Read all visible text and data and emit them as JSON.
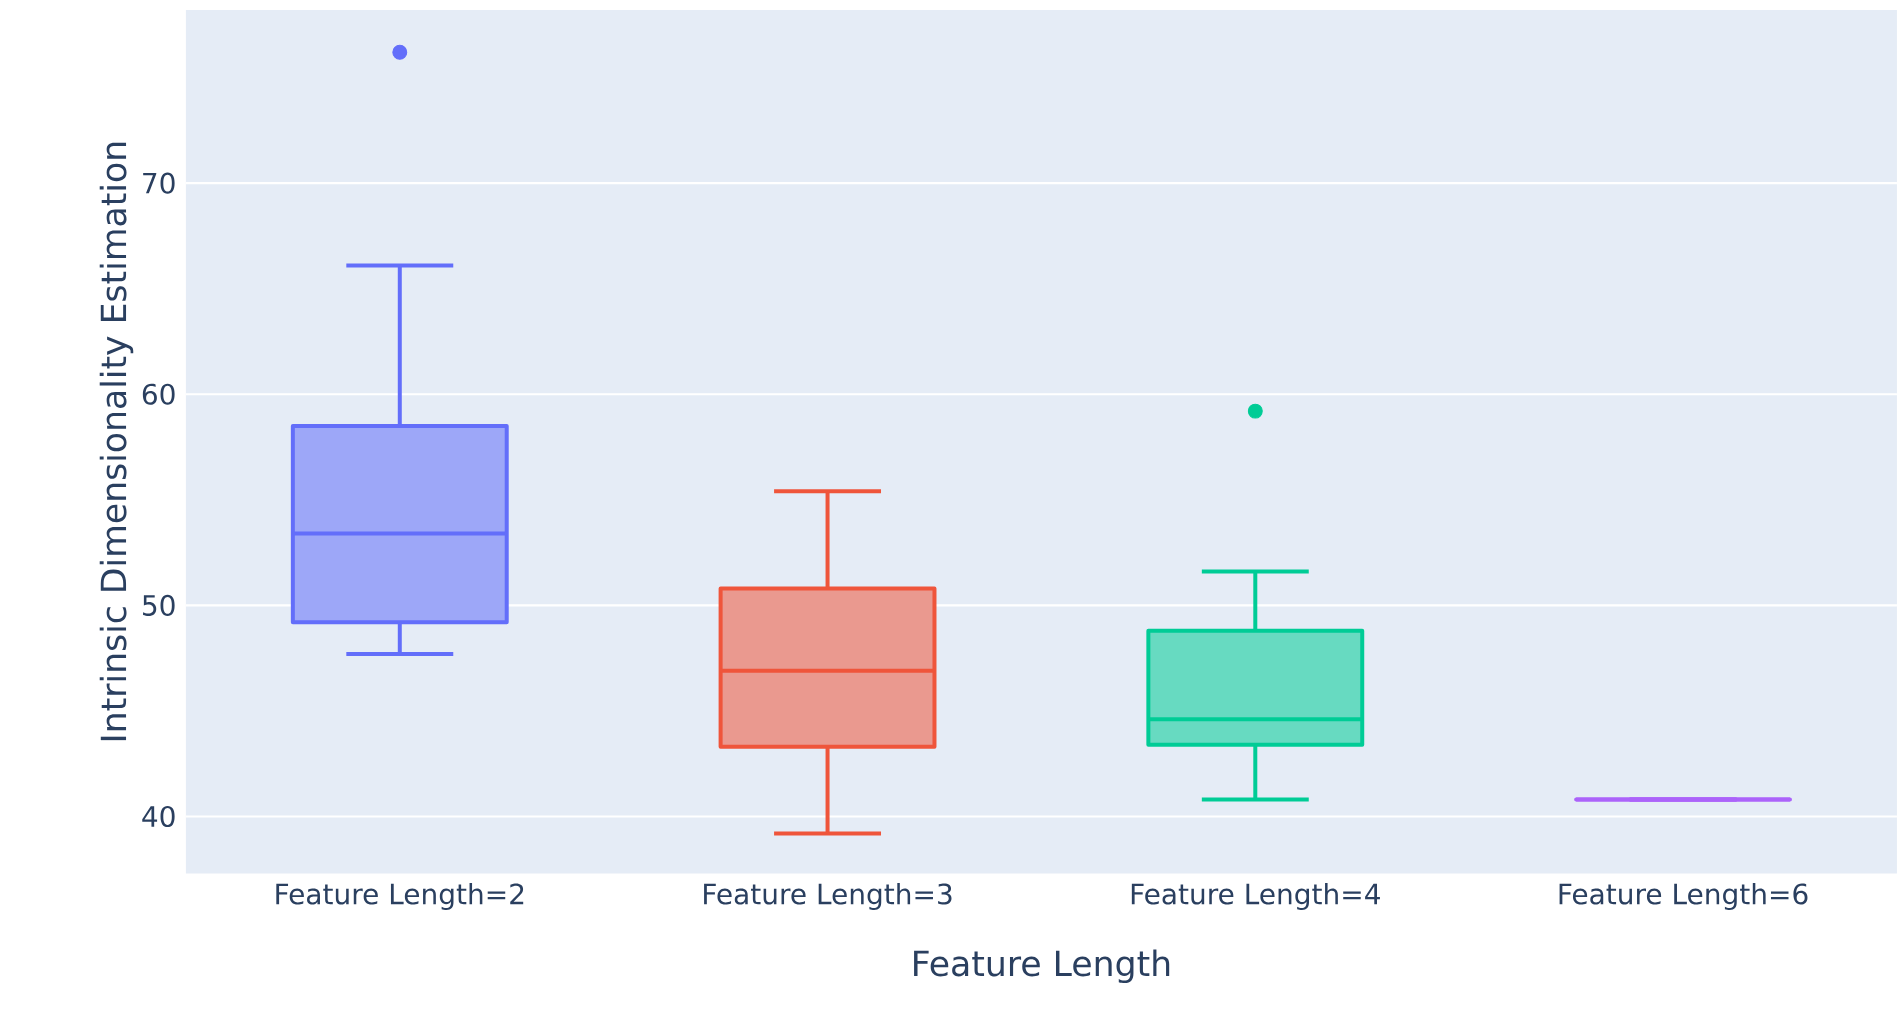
{
  "chart_data": {
    "type": "box",
    "categories": [
      "Feature Length=2",
      "Feature Length=3",
      "Feature Length=4",
      "Feature Length=6"
    ],
    "boxes": [
      {
        "low": 47.7,
        "q1": 49.2,
        "median": 53.4,
        "q3": 58.5,
        "high": 66.1,
        "outliers": [
          76.2
        ]
      },
      {
        "low": 39.2,
        "q1": 43.3,
        "median": 46.9,
        "q3": 50.8,
        "high": 55.4
      },
      {
        "low": 40.8,
        "q1": 43.4,
        "median": 44.6,
        "q3": 48.8,
        "high": 51.6,
        "outliers": [
          59.2
        ]
      },
      {
        "low": 40.8,
        "q1": 40.8,
        "median": 40.8,
        "q3": 40.8,
        "high": 40.8
      }
    ],
    "colors": [
      "#636efa",
      "#ef553b",
      "#00cc96",
      "#ab63fa"
    ],
    "xlabel": "Feature Length",
    "ylabel": "Intrinsic Dimensionality Estimation",
    "ylim": [
      37.3,
      78.2
    ],
    "yticks": [
      40,
      50,
      60,
      70
    ],
    "grid": "y"
  }
}
